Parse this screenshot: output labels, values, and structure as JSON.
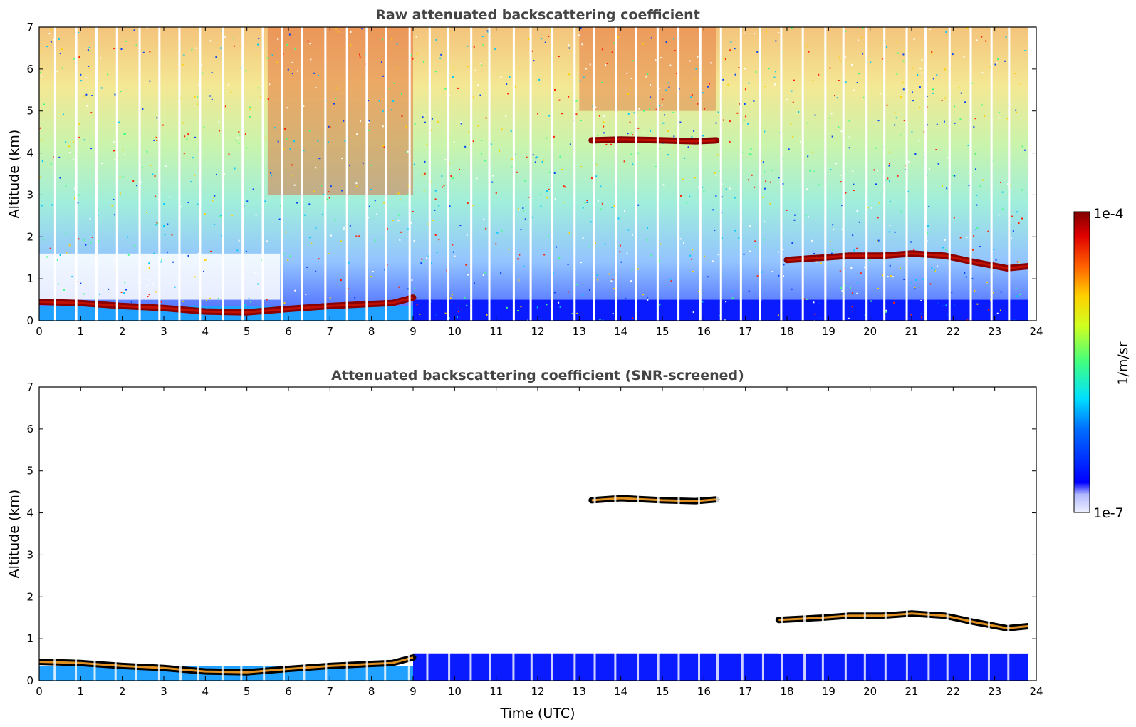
{
  "chart_data": [
    {
      "type": "heatmap",
      "title": "Raw attenuated backscattering coefficient",
      "xlabel": "",
      "ylabel": "Altitude (km)",
      "xlim": [
        0,
        24
      ],
      "ylim": [
        0,
        7
      ],
      "xticks": [
        "0",
        "1",
        "2",
        "3",
        "4",
        "5",
        "6",
        "7",
        "8",
        "9",
        "10",
        "11",
        "12",
        "13",
        "14",
        "15",
        "16",
        "17",
        "18",
        "19",
        "20",
        "21",
        "22",
        "23",
        "24"
      ],
      "yticks": [
        "0",
        "1",
        "2",
        "3",
        "4",
        "5",
        "6",
        "7"
      ],
      "cloud_layers": [
        {
          "time": [
            0,
            9
          ],
          "altitude": [
            0.45,
            0.42,
            0.35,
            0.3,
            0.22,
            0.2,
            0.28,
            0.35,
            0.4,
            0.42,
            0.55
          ],
          "times": [
            0,
            1,
            2,
            3,
            4,
            5,
            6,
            7,
            8,
            8.5,
            9
          ]
        },
        {
          "time": [
            13.3,
            16.3
          ],
          "altitude": [
            4.3,
            4.32,
            4.3,
            4.28,
            4.3
          ],
          "times": [
            13.3,
            14,
            15,
            15.8,
            16.3
          ]
        },
        {
          "time": [
            18,
            23.8
          ],
          "altitude": [
            1.45,
            1.5,
            1.55,
            1.55,
            1.6,
            1.55,
            1.4,
            1.25,
            1.3
          ],
          "times": [
            18,
            18.8,
            19.5,
            20.3,
            21,
            21.8,
            22.5,
            23.3,
            23.8
          ]
        }
      ]
    },
    {
      "type": "heatmap",
      "title": "Attenuated backscattering coefficient (SNR-screened)",
      "xlabel": "Time (UTC)",
      "ylabel": "Altitude (km)",
      "xlim": [
        0,
        24
      ],
      "ylim": [
        0,
        7
      ],
      "xticks": [
        "0",
        "1",
        "2",
        "3",
        "4",
        "5",
        "6",
        "7",
        "8",
        "9",
        "10",
        "11",
        "12",
        "13",
        "14",
        "15",
        "16",
        "17",
        "18",
        "19",
        "20",
        "21",
        "22",
        "23",
        "24"
      ],
      "yticks": [
        "0",
        "1",
        "2",
        "3",
        "4",
        "5",
        "6",
        "7"
      ],
      "cloud_layers": [
        {
          "time": [
            0,
            9
          ],
          "altitude": [
            0.45,
            0.42,
            0.35,
            0.3,
            0.22,
            0.2,
            0.28,
            0.35,
            0.4,
            0.42,
            0.55
          ],
          "times": [
            0,
            1,
            2,
            3,
            4,
            5,
            6,
            7,
            8,
            8.5,
            9
          ]
        },
        {
          "time": [
            13.3,
            16.3
          ],
          "altitude": [
            4.3,
            4.35,
            4.3,
            4.28,
            4.32
          ],
          "times": [
            13.3,
            14,
            15,
            15.8,
            16.3
          ]
        },
        {
          "time": [
            17.8,
            23.8
          ],
          "altitude": [
            1.45,
            1.5,
            1.55,
            1.55,
            1.6,
            1.55,
            1.4,
            1.25,
            1.3
          ],
          "times": [
            17.8,
            18.8,
            19.5,
            20.3,
            21,
            21.8,
            22.5,
            23.3,
            23.8
          ]
        }
      ]
    }
  ],
  "colorbar": {
    "max_label": "1e-4",
    "min_label": "1e-7",
    "unit_label": "1/m/sr",
    "scale": "log"
  }
}
